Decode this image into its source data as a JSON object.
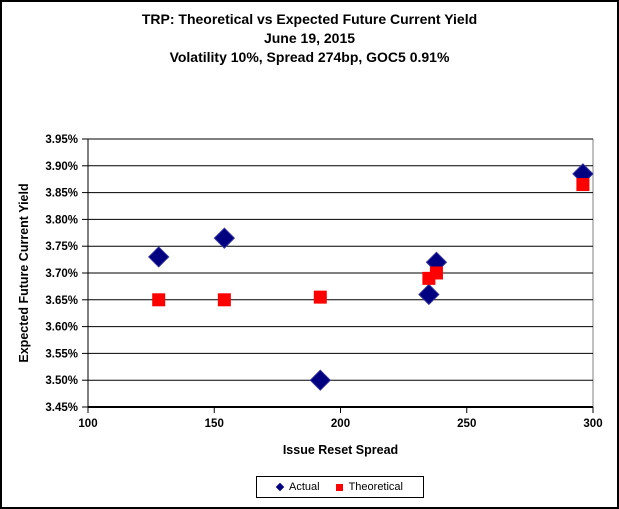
{
  "window": {
    "background": "#FFFFFF",
    "border_color": "#000000"
  },
  "chart_data": {
    "type": "scatter",
    "title_lines": [
      "TRP: Theoretical vs Expected Future Current Yield",
      "June 19, 2015",
      "Volatility 10%, Spread 274bp, GOC5 0.91%"
    ],
    "xlabel": "Issue Reset Spread",
    "ylabel": "Expected Future Current Yield",
    "xlim": [
      100,
      300
    ],
    "ylim": [
      3.45,
      3.95
    ],
    "x_ticks": [
      100,
      150,
      200,
      250,
      300
    ],
    "x_tick_labels": [
      "100",
      "150",
      "200",
      "250",
      "300"
    ],
    "y_ticks": [
      3.45,
      3.5,
      3.55,
      3.6,
      3.65,
      3.7,
      3.75,
      3.8,
      3.85,
      3.9,
      3.95
    ],
    "y_tick_labels": [
      "3.45%",
      "3.50%",
      "3.55%",
      "3.60%",
      "3.65%",
      "3.70%",
      "3.75%",
      "3.80%",
      "3.85%",
      "3.90%",
      "3.95%"
    ],
    "grid": "horizontal",
    "legend_position": "bottom-center",
    "series": [
      {
        "name": "Actual",
        "marker": "diamond",
        "color": "#000080",
        "points": [
          [
            128,
            3.73
          ],
          [
            154,
            3.765
          ],
          [
            192,
            3.5
          ],
          [
            235,
            3.66
          ],
          [
            238,
            3.72
          ],
          [
            296,
            3.885
          ]
        ]
      },
      {
        "name": "Theoretical",
        "marker": "square",
        "color": "#FF0000",
        "points": [
          [
            128,
            3.65
          ],
          [
            154,
            3.65
          ],
          [
            192,
            3.655
          ],
          [
            235,
            3.69
          ],
          [
            238,
            3.7
          ],
          [
            296,
            3.865
          ]
        ]
      }
    ]
  }
}
